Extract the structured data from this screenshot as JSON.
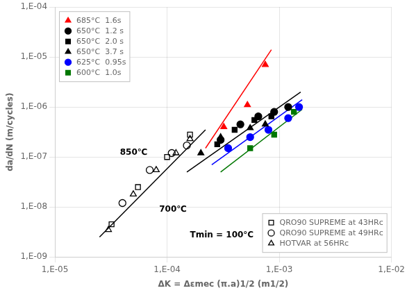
{
  "chart_data": {
    "type": "scatter",
    "log": true,
    "grid": true,
    "xlabel": "ΔK = Δεmec (π.a)1/2 (m1/2)",
    "ylabel": "da/dN (m/cycles)",
    "xlim": [
      1e-05,
      0.01
    ],
    "ylim": [
      1e-09,
      0.0001
    ],
    "xticks": [
      {
        "value": 1e-05,
        "label": "1,E-05"
      },
      {
        "value": 0.0001,
        "label": "1,E-04"
      },
      {
        "value": 0.001,
        "label": "1,E-03"
      },
      {
        "value": 0.01,
        "label": "1,E-02"
      }
    ],
    "yticks": [
      {
        "value": 1e-09,
        "label": "1,E-09"
      },
      {
        "value": 1e-08,
        "label": "1,E-08"
      },
      {
        "value": 1e-07,
        "label": "1,E-07"
      },
      {
        "value": 1e-06,
        "label": "1,E-06"
      },
      {
        "value": 1e-05,
        "label": "1,E-05"
      },
      {
        "value": 0.0001,
        "label": "1,E-04"
      }
    ],
    "series": [
      {
        "type": "line",
        "color": "red",
        "x": [
          0.00022,
          0.00085
        ],
        "values": [
          1.5e-07,
          1.4e-05
        ]
      },
      {
        "type": "line",
        "color": "black",
        "x": [
          0.00015,
          0.00155
        ],
        "values": [
          5e-08,
          2e-06
        ]
      },
      {
        "type": "line",
        "color": "blue",
        "x": [
          0.00025,
          0.0016
        ],
        "values": [
          7e-08,
          1.4e-06
        ]
      },
      {
        "type": "line",
        "color": "#007700",
        "x": [
          0.0003,
          0.0016
        ],
        "values": [
          5e-08,
          9e-07
        ]
      },
      {
        "type": "line",
        "color": "black",
        "x": [
          2.5e-05,
          0.00022
        ],
        "values": [
          2.5e-09,
          3.5e-07
        ]
      },
      {
        "name": "685°C  1.6s",
        "color": "red",
        "marker": "triangle",
        "legend": "upper left",
        "x": [
          0.00032,
          0.00052,
          0.00075
        ],
        "values": [
          4e-07,
          1.1e-06,
          7e-06
        ]
      },
      {
        "name": "650°C  1.2 s",
        "color": "black",
        "marker": "circle",
        "legend": "upper left",
        "x": [
          0.0003,
          0.00045,
          0.00065,
          0.0009,
          0.0012
        ],
        "values": [
          2.2e-07,
          4.5e-07,
          6.5e-07,
          8e-07,
          1e-06
        ]
      },
      {
        "name": "650°C  2.0 s",
        "color": "black",
        "marker": "square",
        "legend": "upper left",
        "x": [
          0.00028,
          0.0004,
          0.0006,
          0.00085
        ],
        "values": [
          1.8e-07,
          3.5e-07,
          5.5e-07,
          6.5e-07
        ]
      },
      {
        "name": "650°C  3.7 s",
        "color": "black",
        "marker": "triangle",
        "legend": "upper left",
        "x": [
          0.0002,
          0.0003,
          0.00055,
          0.00075
        ],
        "values": [
          1.2e-07,
          2.5e-07,
          3.8e-07,
          4.5e-07
        ]
      },
      {
        "name": "625°C  0.95s",
        "color": "blue",
        "marker": "circle",
        "legend": "upper left",
        "x": [
          0.00035,
          0.00055,
          0.0008,
          0.0012,
          0.0015
        ],
        "values": [
          1.5e-07,
          2.5e-07,
          3.5e-07,
          6e-07,
          1e-06
        ]
      },
      {
        "name": "600°C  1.0s",
        "color": "#007700",
        "marker": "square",
        "legend": "upper left",
        "x": [
          0.00055,
          0.0009,
          0.00135
        ],
        "values": [
          1.5e-07,
          2.8e-07,
          8e-07
        ]
      },
      {
        "name": "QRO90 SUPREME at 43HRc",
        "color": "black",
        "marker": "square_open",
        "legend": "lower right",
        "x": [
          3.2e-05,
          5.5e-05,
          0.0001,
          0.00016
        ],
        "values": [
          4.5e-09,
          2.5e-08,
          1e-07,
          2.8e-07
        ]
      },
      {
        "name": "QRO90 SUPREME at 49HRc",
        "color": "black",
        "marker": "circle_open",
        "legend": "lower right",
        "x": [
          4e-05,
          7e-05,
          0.00011,
          0.00015
        ],
        "values": [
          1.2e-08,
          5.5e-08,
          1.2e-07,
          1.7e-07
        ]
      },
      {
        "name": "HOTVAR at 56HRc",
        "color": "black",
        "marker": "triangle_open",
        "legend": "lower right",
        "x": [
          3e-05,
          5e-05,
          8e-05,
          0.00012,
          0.00016
        ],
        "values": [
          3.5e-09,
          1.8e-08,
          5.5e-08,
          1.2e-07,
          2.3e-07
        ]
      }
    ],
    "annotations": [
      {
        "text": "850℃",
        "x": 3.8e-05,
        "y": 1.1e-07
      },
      {
        "text": "700℃",
        "x": 8.5e-05,
        "y": 8e-09
      },
      {
        "text": "Tmin = 100°C",
        "x": 0.00016,
        "y": 2.5e-09
      }
    ]
  }
}
